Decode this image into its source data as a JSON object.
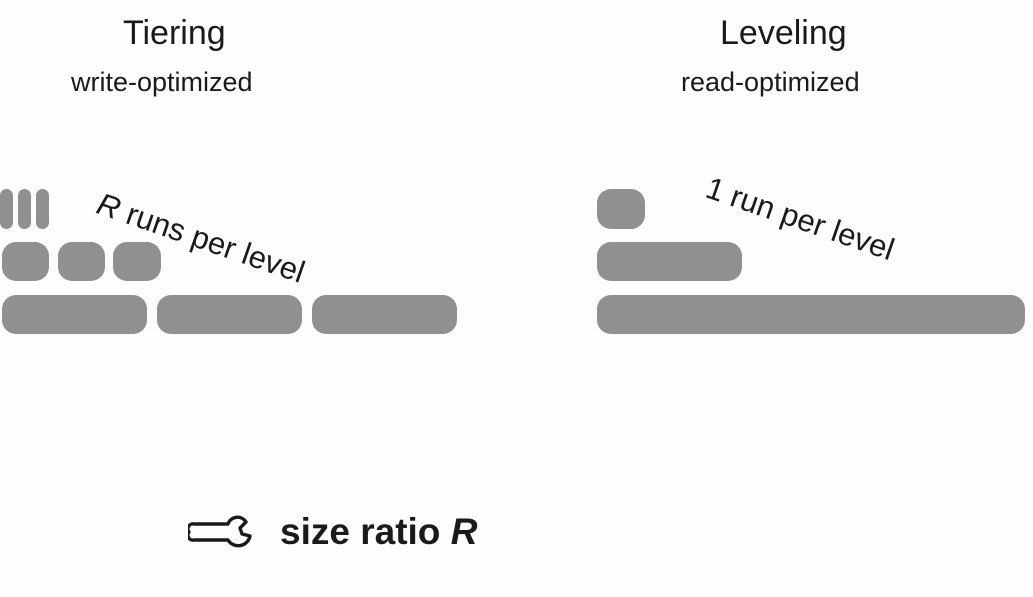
{
  "tiering": {
    "title": "Tiering",
    "subtitle": "write-optimized",
    "annotation_var": "R",
    "annotation_rest": " runs per level"
  },
  "leveling": {
    "title": "Leveling",
    "subtitle": "read-optimized",
    "annotation": "1 run per level"
  },
  "footer": {
    "icon": "wrench-icon",
    "label": "size ratio ",
    "var": "R"
  },
  "colors": {
    "run_fill": "#8e918e",
    "background": "#fdfdfd",
    "text": "#1a1a1a"
  }
}
